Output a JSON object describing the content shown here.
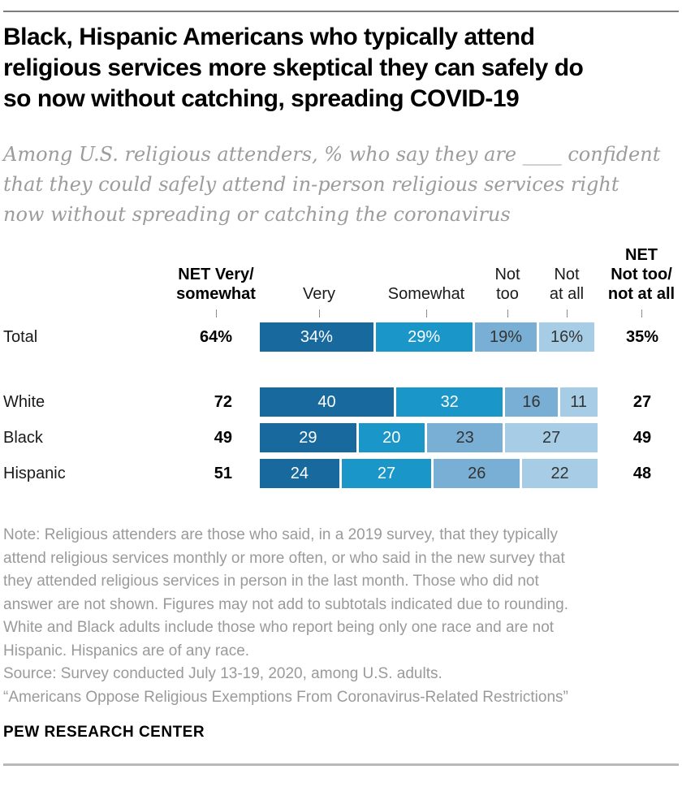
{
  "page": {
    "title": "Black, Hispanic Americans who typically attend\nreligious services more skeptical they can safely do\nso now without catching, spreading COVID-19",
    "subtitle": "Among U.S. religious attenders, % who say they are ____ confident\nthat they could safely attend in-person religious services right\nnow without spreading or catching the coronavirus"
  },
  "chart_data": {
    "type": "bar",
    "variant": "horizontal-stacked",
    "unit": "percent",
    "axis_max": 100,
    "legend_position": "column-headers",
    "columns": {
      "net_left": "NET Very/\nsomewhat",
      "very": "Very",
      "somewhat": "Somewhat",
      "not_too": "Not\ntoo",
      "not_at_all": "Not\nat all",
      "net_right": "NET\nNot too/\nnot at all"
    },
    "rows": [
      {
        "label": "Total",
        "net_left": "64%",
        "net_right": "35%",
        "segments": [
          {
            "value": 34,
            "text": "34%"
          },
          {
            "value": 29,
            "text": "29%"
          },
          {
            "value": 19,
            "text": "19%"
          },
          {
            "value": 16,
            "text": "16%"
          }
        ]
      },
      {
        "label": "White",
        "net_left": "72",
        "net_right": "27",
        "segments": [
          {
            "value": 40,
            "text": "40"
          },
          {
            "value": 32,
            "text": "32"
          },
          {
            "value": 16,
            "text": "16"
          },
          {
            "value": 11,
            "text": "11"
          }
        ]
      },
      {
        "label": "Black",
        "net_left": "49",
        "net_right": "49",
        "segments": [
          {
            "value": 29,
            "text": "29"
          },
          {
            "value": 20,
            "text": "20"
          },
          {
            "value": 23,
            "text": "23"
          },
          {
            "value": 27,
            "text": "27"
          }
        ]
      },
      {
        "label": "Hispanic",
        "net_left": "51",
        "net_right": "48",
        "segments": [
          {
            "value": 24,
            "text": "24"
          },
          {
            "value": 27,
            "text": "27"
          },
          {
            "value": 26,
            "text": "26"
          },
          {
            "value": 22,
            "text": "22"
          }
        ]
      }
    ],
    "colors": {
      "very": "#17699E",
      "somewhat": "#1A97C8",
      "not_too": "#79AFD4",
      "not_at_all": "#A7CDE6"
    }
  },
  "footer": {
    "note": "Note: Religious attenders are those who said, in a 2019 survey, that they typically\nattend religious services monthly or more often, or who said in the new survey that\nthey attended religious services in person in the last month. Those who did not\nanswer are not shown. Figures may not add to subtotals indicated due to rounding.\nWhite and Black adults include those who report being only one race and are not\nHispanic. Hispanics are of any race.",
    "source": "Source: Survey conducted July 13-19, 2020, among U.S. adults.",
    "quote": "“Americans Oppose Religious Exemptions From Coronavirus-Related Restrictions”",
    "brand": "PEW RESEARCH CENTER"
  }
}
